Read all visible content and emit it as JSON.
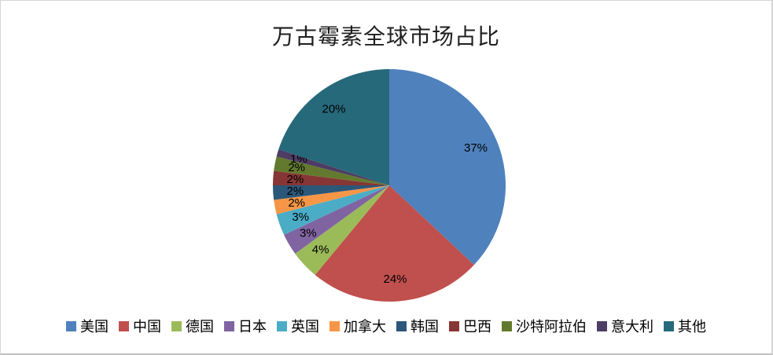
{
  "chart_data": {
    "type": "pie",
    "title": "万古霉素全球市场占比",
    "categories": [
      "美国",
      "中国",
      "德国",
      "日本",
      "英国",
      "加拿大",
      "韩国",
      "巴西",
      "沙特阿拉伯",
      "意大利",
      "其他"
    ],
    "values": [
      37,
      24,
      4,
      3,
      3,
      2,
      2,
      2,
      2,
      1,
      20
    ],
    "data_labels": [
      "37%",
      "24%",
      "4%",
      "3%",
      "3%",
      "2%",
      "2%",
      "2%",
      "2%",
      "1%",
      "20%"
    ],
    "colors": [
      "#4F81BD",
      "#C0504D",
      "#9BBB59",
      "#8064A2",
      "#4BACC6",
      "#F79646",
      "#2B5779",
      "#863634",
      "#637A2E",
      "#4D3C63",
      "#26697B"
    ],
    "start_angle_deg": 0,
    "direction": "clockwise",
    "legend_position": "bottom",
    "label_color": "#000000",
    "background_color": "#FFFFFF"
  }
}
